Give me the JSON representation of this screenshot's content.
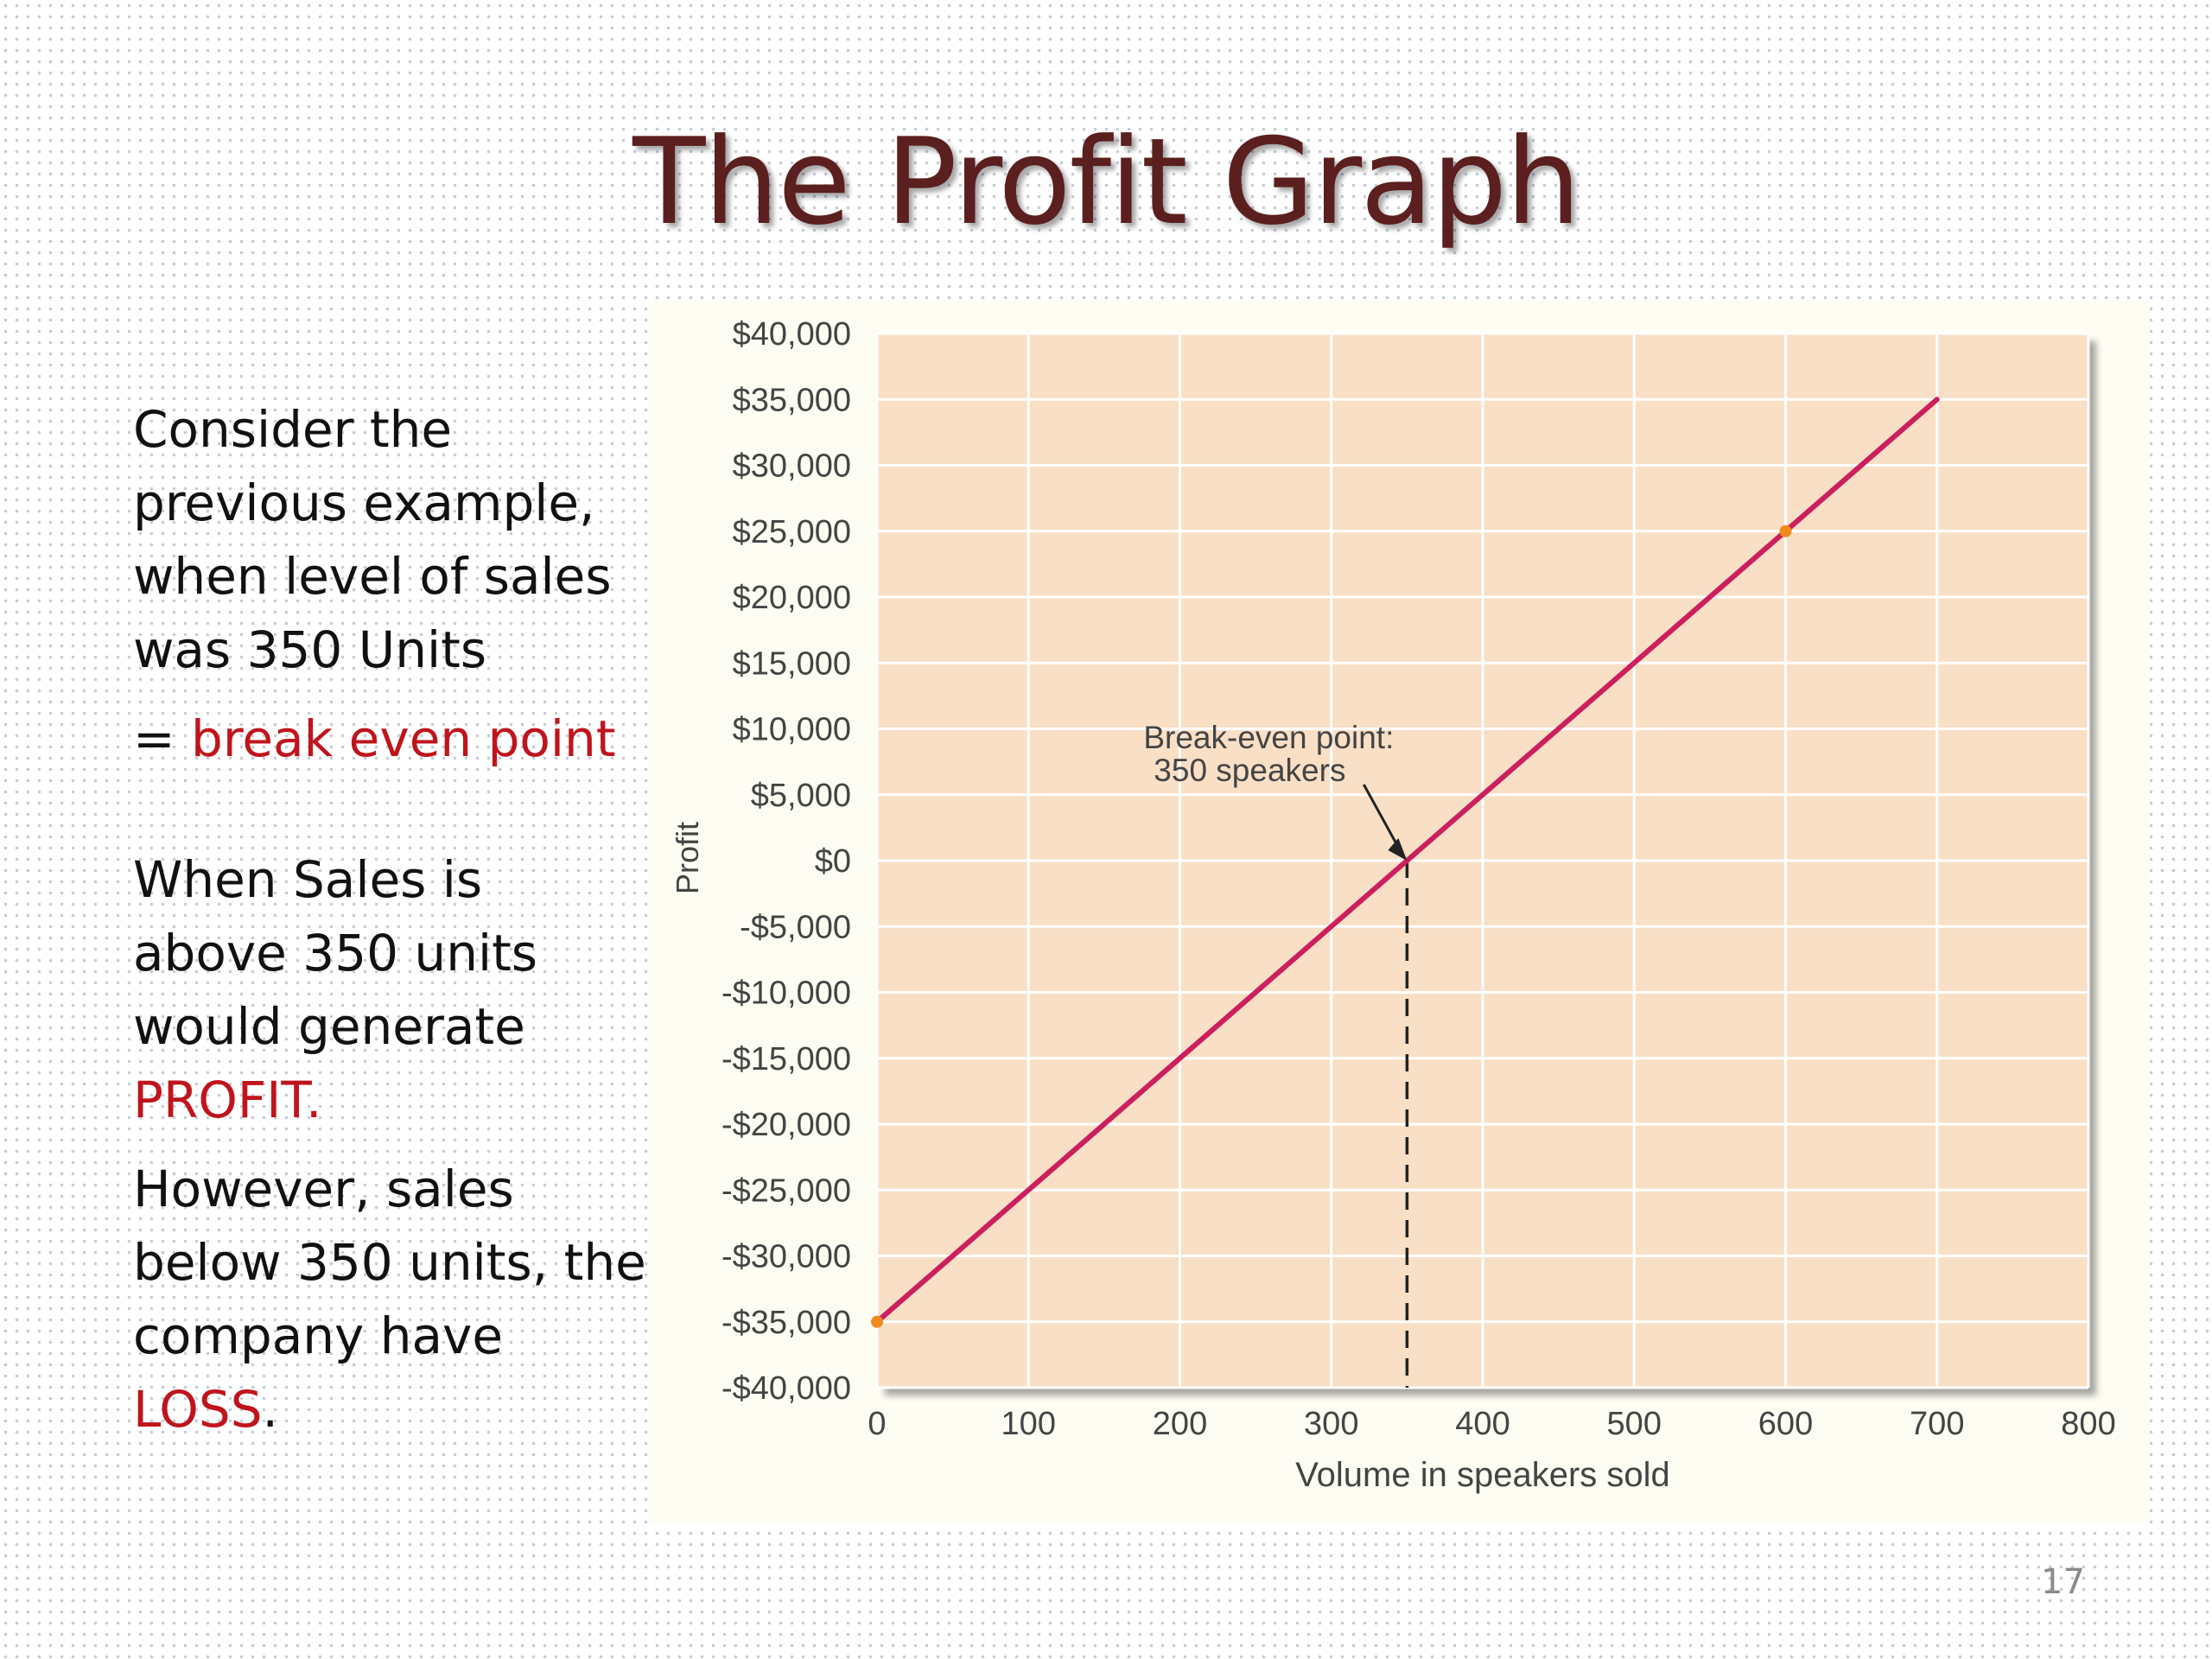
{
  "slide": {
    "title": "The Profit Graph",
    "page_number": "17",
    "text": {
      "p1": "Consider the previous example, when level of sales was 350 Units",
      "p2_prefix": "= ",
      "p2_highlight": "break even point",
      "p3": "When Sales is above 350 units would generate ",
      "p3_highlight": "PROFIT.",
      "p4": "However, sales below 350 units, the company have ",
      "p4_highlight": "LOSS",
      "p4_suffix": "."
    }
  },
  "colors": {
    "highlight": "#c0141c",
    "title": "#5b1f1f",
    "plot_background": "#f8dfc6",
    "line": "#cc1f5e",
    "marker": "#f08a1c"
  },
  "chart_data": {
    "type": "line",
    "xlabel": "Volume in speakers sold",
    "ylabel": "Profit",
    "xlim": [
      0,
      800
    ],
    "ylim": [
      -40000,
      40000
    ],
    "x_ticks": [
      "0",
      "100",
      "200",
      "300",
      "400",
      "500",
      "600",
      "700",
      "800"
    ],
    "y_ticks": [
      "$40,000",
      "$35,000",
      "$30,000",
      "$25,000",
      "$20,000",
      "$15,000",
      "$10,000",
      "$5,000",
      "$0",
      "-$5,000",
      "-$10,000",
      "-$15,000",
      "-$20,000",
      "-$25,000",
      "-$30,000",
      "-$35,000",
      "-$40,000"
    ],
    "grid": true,
    "series": [
      {
        "x": [
          0,
          700
        ],
        "y": [
          -35000,
          35000
        ]
      }
    ],
    "markers": [
      {
        "x": 0,
        "y": -35000
      },
      {
        "x": 600,
        "y": 25000
      }
    ],
    "annotation": {
      "line1": "Break-even point:",
      "line2": "350 speakers",
      "x": 350,
      "y": 0
    }
  }
}
